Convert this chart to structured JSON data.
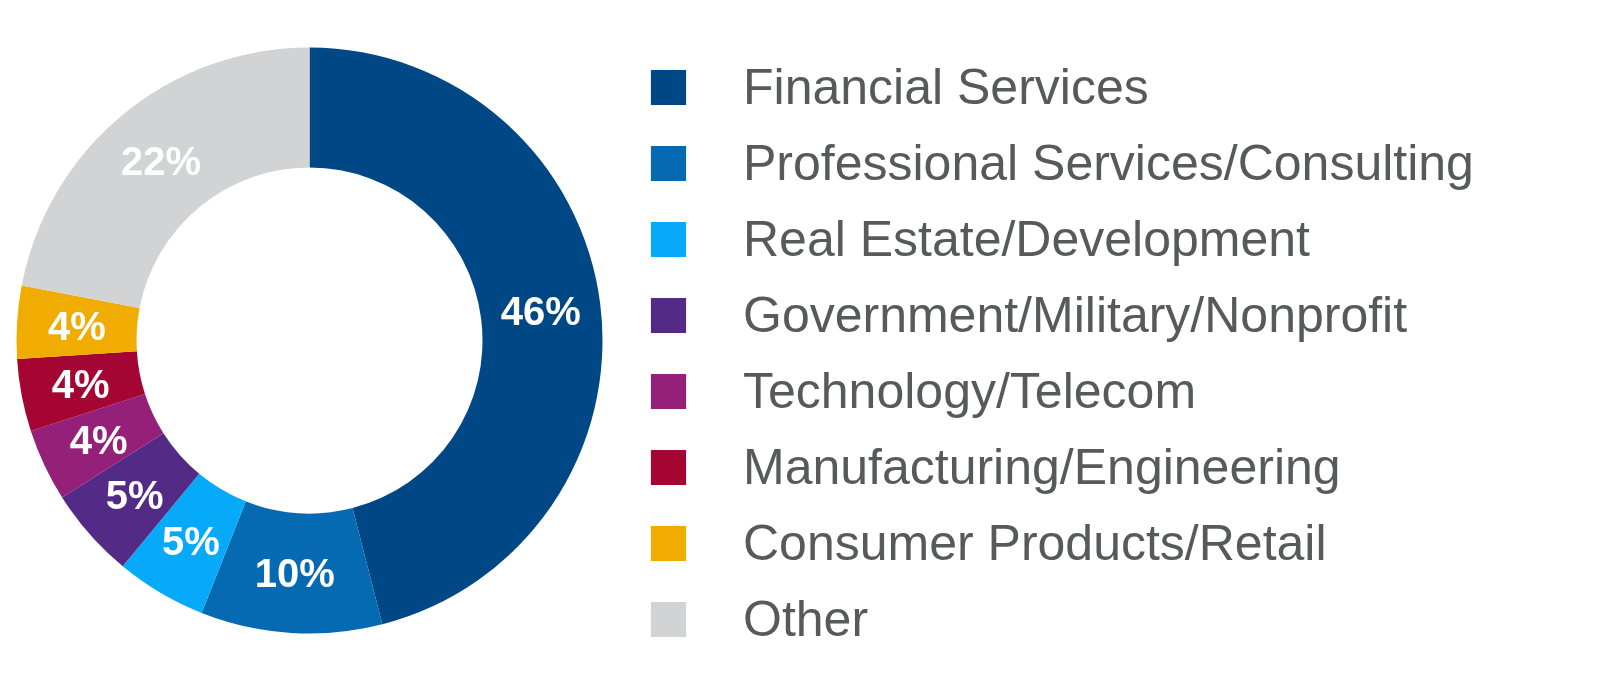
{
  "chart_data": {
    "type": "donut",
    "categories": [
      "Financial Services",
      "Professional Services/Consulting",
      "Real Estate/Development",
      "Government/Military/Nonprofit",
      "Technology/Telecom",
      "Manufacturing/Engineering",
      "Consumer Products/Retail",
      "Other"
    ],
    "values": [
      46,
      10,
      5,
      5,
      4,
      4,
      4,
      22
    ],
    "colors": [
      "#004785",
      "#056ab2",
      "#07aaf9",
      "#532a85",
      "#952079",
      "#a50533",
      "#f0ac00",
      "#d1d3d4"
    ],
    "value_labels": [
      "46%",
      "10%",
      "5%",
      "5%",
      "4%",
      "4%",
      "4%",
      "22%"
    ],
    "legend": "right"
  }
}
